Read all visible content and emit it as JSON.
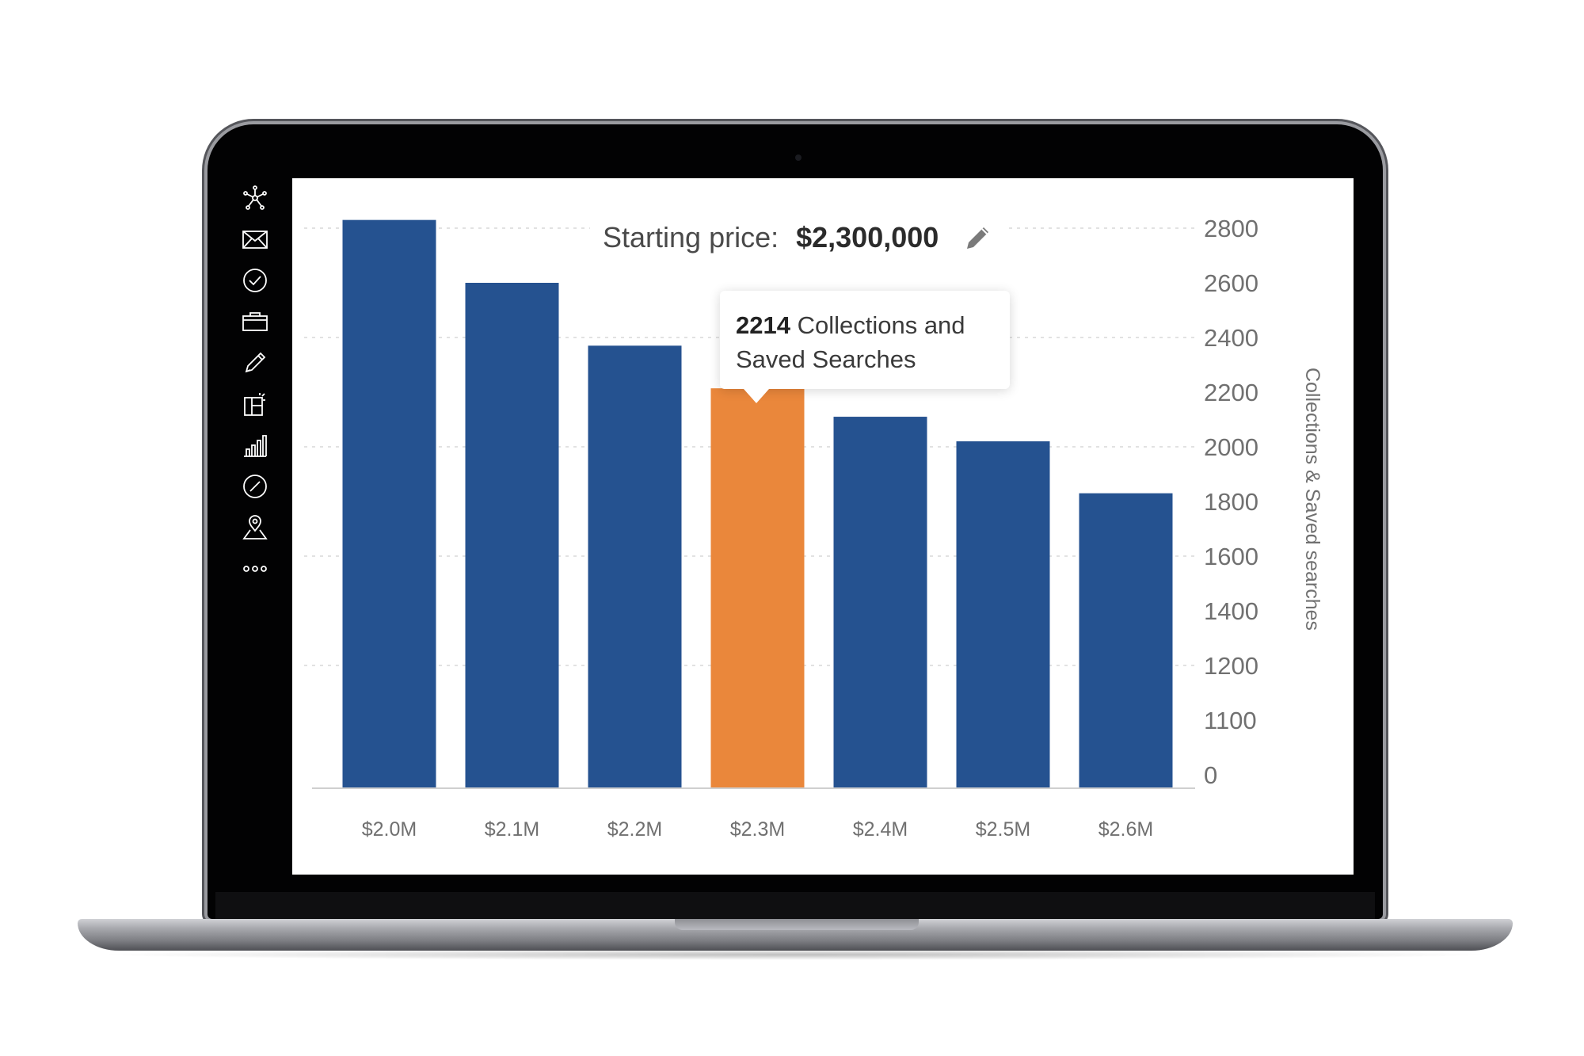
{
  "header": {
    "label": "Starting price:",
    "price": "$2,300,000",
    "edit_icon": "pencil-icon"
  },
  "tooltip": {
    "value": "2214",
    "line1_suffix": " Collections and",
    "line2": "Saved Searches"
  },
  "sidebar": {
    "icons": [
      "network-icon",
      "mail-icon",
      "check-circle-icon",
      "briefcase-icon",
      "pencil-icon",
      "dashboard-icon",
      "bar-chart-icon",
      "compass-icon",
      "map-pin-icon",
      "more-icon"
    ]
  },
  "chart_data": {
    "type": "bar",
    "categories": [
      "$2.0M",
      "$2.1M",
      "$2.2M",
      "$2.3M",
      "$2.4M",
      "$2.5M",
      "$2.6M"
    ],
    "values": [
      2830,
      2600,
      2370,
      2214,
      2110,
      2020,
      1830
    ],
    "highlighted_index": 3,
    "y_tick_labels": [
      "0",
      "1100",
      "1200",
      "1400",
      "1600",
      "1800",
      "2000",
      "2200",
      "2400",
      "2600",
      "2800"
    ],
    "ylabel": "Collections & Saved searches",
    "y_axis_position": "right",
    "grid": true,
    "colors": {
      "bar": "#255290",
      "highlight": "#ea873b",
      "grid": "#d9d9d9",
      "axis_text": "#707070"
    }
  }
}
